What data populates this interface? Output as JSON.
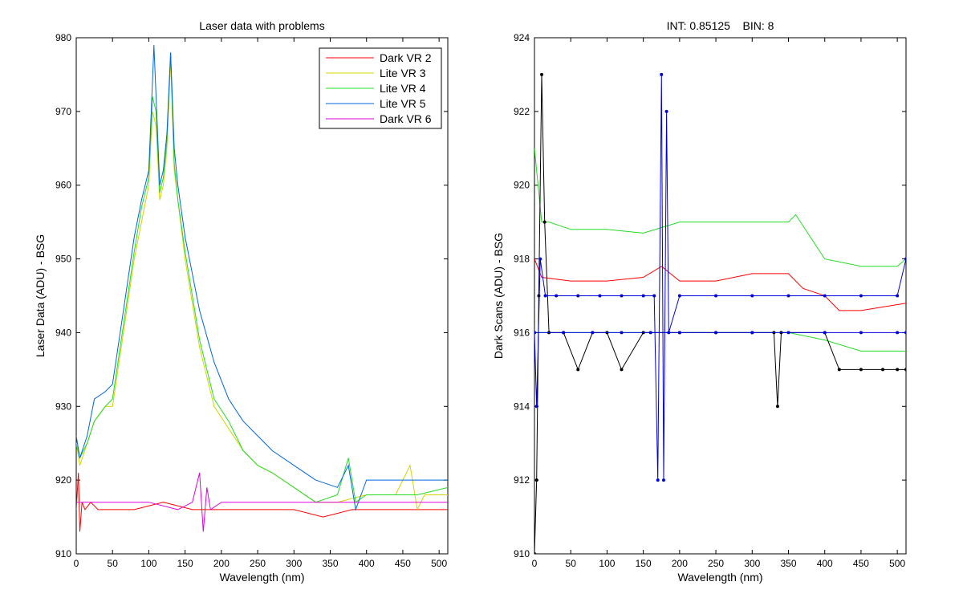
{
  "chart_data": [
    {
      "type": "line",
      "title": "Laser data with problems",
      "xlabel": "Wavelength (nm)",
      "ylabel": "Laser Data (ADU) - BSG",
      "xlim": [
        0,
        512
      ],
      "ylim": [
        910,
        980
      ],
      "xticks": [
        0,
        50,
        100,
        150,
        200,
        250,
        300,
        350,
        400,
        450,
        500
      ],
      "yticks": [
        910,
        920,
        930,
        940,
        950,
        960,
        970,
        980
      ],
      "grid": false,
      "legend_position": "top-right",
      "series": [
        {
          "name": "Dark VR 2",
          "color": "#ff0000",
          "points": [
            [
              0,
              916
            ],
            [
              3,
              921
            ],
            [
              5,
              913
            ],
            [
              8,
              917
            ],
            [
              12,
              916
            ],
            [
              20,
              917
            ],
            [
              30,
              916
            ],
            [
              50,
              916
            ],
            [
              80,
              916
            ],
            [
              120,
              917
            ],
            [
              160,
              916
            ],
            [
              200,
              916
            ],
            [
              260,
              916
            ],
            [
              300,
              916
            ],
            [
              340,
              915
            ],
            [
              380,
              916
            ],
            [
              420,
              916
            ],
            [
              460,
              916
            ],
            [
              512,
              916
            ]
          ]
        },
        {
          "name": "Lite VR 3",
          "color": "#d4d400",
          "points": [
            [
              0,
              925
            ],
            [
              5,
              922
            ],
            [
              15,
              925
            ],
            [
              25,
              928
            ],
            [
              40,
              930
            ],
            [
              50,
              930
            ],
            [
              65,
              940
            ],
            [
              80,
              950
            ],
            [
              90,
              955
            ],
            [
              100,
              960
            ],
            [
              105,
              970
            ],
            [
              110,
              968
            ],
            [
              115,
              958
            ],
            [
              120,
              960
            ],
            [
              125,
              965
            ],
            [
              130,
              977
            ],
            [
              135,
              962
            ],
            [
              140,
              958
            ],
            [
              150,
              950
            ],
            [
              170,
              938
            ],
            [
              190,
              930
            ],
            [
              210,
              927
            ],
            [
              230,
              924
            ],
            [
              250,
              922
            ],
            [
              270,
              921
            ],
            [
              300,
              919
            ],
            [
              330,
              917
            ],
            [
              360,
              917
            ],
            [
              400,
              918
            ],
            [
              440,
              918
            ],
            [
              460,
              922
            ],
            [
              470,
              916
            ],
            [
              480,
              918
            ],
            [
              512,
              918
            ]
          ]
        },
        {
          "name": "Lite VR 4",
          "color": "#22dd22",
          "points": [
            [
              0,
              925
            ],
            [
              5,
              923
            ],
            [
              15,
              925
            ],
            [
              25,
              928
            ],
            [
              40,
              930
            ],
            [
              50,
              931
            ],
            [
              65,
              941
            ],
            [
              80,
              951
            ],
            [
              90,
              957
            ],
            [
              100,
              961
            ],
            [
              105,
              972
            ],
            [
              110,
              970
            ],
            [
              115,
              959
            ],
            [
              120,
              961
            ],
            [
              125,
              966
            ],
            [
              130,
              978
            ],
            [
              135,
              963
            ],
            [
              140,
              958
            ],
            [
              150,
              951
            ],
            [
              170,
              939
            ],
            [
              190,
              931
            ],
            [
              210,
              928
            ],
            [
              230,
              924
            ],
            [
              250,
              922
            ],
            [
              270,
              921
            ],
            [
              300,
              919
            ],
            [
              330,
              917
            ],
            [
              360,
              918
            ],
            [
              375,
              923
            ],
            [
              385,
              917
            ],
            [
              400,
              918
            ],
            [
              440,
              918
            ],
            [
              470,
              918
            ],
            [
              512,
              919
            ]
          ]
        },
        {
          "name": "Lite VR 5",
          "color": "#0066dd",
          "points": [
            [
              0,
              926
            ],
            [
              5,
              923
            ],
            [
              15,
              926
            ],
            [
              25,
              931
            ],
            [
              40,
              932
            ],
            [
              50,
              933
            ],
            [
              65,
              943
            ],
            [
              80,
              953
            ],
            [
              90,
              958
            ],
            [
              100,
              962
            ],
            [
              105,
              974
            ],
            [
              107,
              979
            ],
            [
              110,
              972
            ],
            [
              115,
              960
            ],
            [
              120,
              962
            ],
            [
              125,
              967
            ],
            [
              130,
              978
            ],
            [
              135,
              965
            ],
            [
              140,
              960
            ],
            [
              150,
              953
            ],
            [
              170,
              943
            ],
            [
              190,
              936
            ],
            [
              210,
              931
            ],
            [
              230,
              928
            ],
            [
              250,
              926
            ],
            [
              270,
              924
            ],
            [
              300,
              922
            ],
            [
              330,
              920
            ],
            [
              360,
              919
            ],
            [
              375,
              922
            ],
            [
              385,
              916
            ],
            [
              400,
              920
            ],
            [
              440,
              920
            ],
            [
              480,
              920
            ],
            [
              512,
              920
            ]
          ]
        },
        {
          "name": "Dark VR 6",
          "color": "#dd00dd",
          "points": [
            [
              0,
              917
            ],
            [
              20,
              917
            ],
            [
              40,
              917
            ],
            [
              70,
              917
            ],
            [
              100,
              917
            ],
            [
              140,
              916
            ],
            [
              160,
              917
            ],
            [
              170,
              921
            ],
            [
              175,
              913
            ],
            [
              180,
              919
            ],
            [
              185,
              916
            ],
            [
              200,
              917
            ],
            [
              240,
              917
            ],
            [
              280,
              917
            ],
            [
              320,
              917
            ],
            [
              360,
              917
            ],
            [
              400,
              917
            ],
            [
              440,
              917
            ],
            [
              480,
              917
            ],
            [
              512,
              917
            ]
          ]
        }
      ]
    },
    {
      "type": "line",
      "title": "INT: 0.85125    BIN: 8",
      "xlabel": "Wavelength (nm)",
      "ylabel": "Dark Scans (ADU) - BSG",
      "xlim": [
        0,
        512
      ],
      "ylim": [
        910,
        924
      ],
      "xticks": [
        0,
        50,
        100,
        150,
        200,
        250,
        300,
        350,
        400,
        450,
        500
      ],
      "yticks": [
        910,
        912,
        914,
        916,
        918,
        920,
        922,
        924
      ],
      "grid": false,
      "series": [
        {
          "color": "#22dd22",
          "points": [
            [
              0,
              921
            ],
            [
              5,
              920
            ],
            [
              10,
              919
            ],
            [
              20,
              919
            ],
            [
              50,
              918.8
            ],
            [
              100,
              918.8
            ],
            [
              150,
              918.7
            ],
            [
              200,
              919
            ],
            [
              250,
              919
            ],
            [
              300,
              919
            ],
            [
              350,
              919
            ],
            [
              360,
              919.2
            ],
            [
              380,
              918.6
            ],
            [
              400,
              918
            ],
            [
              450,
              917.8
            ],
            [
              500,
              917.8
            ],
            [
              512,
              918
            ]
          ]
        },
        {
          "color": "#22dd22",
          "points": [
            [
              0,
              916
            ],
            [
              20,
              916
            ],
            [
              60,
              916
            ],
            [
              100,
              916
            ],
            [
              150,
              916
            ],
            [
              200,
              916
            ],
            [
              250,
              916
            ],
            [
              300,
              916
            ],
            [
              350,
              916
            ],
            [
              400,
              915.8
            ],
            [
              450,
              915.5
            ],
            [
              500,
              915.5
            ],
            [
              512,
              915.5
            ]
          ]
        },
        {
          "color": "#ff0000",
          "points": [
            [
              0,
              918
            ],
            [
              10,
              917.5
            ],
            [
              50,
              917.4
            ],
            [
              100,
              917.4
            ],
            [
              150,
              917.5
            ],
            [
              175,
              917.8
            ],
            [
              200,
              917.4
            ],
            [
              250,
              917.4
            ],
            [
              300,
              917.6
            ],
            [
              350,
              917.6
            ],
            [
              370,
              917.2
            ],
            [
              400,
              917
            ],
            [
              420,
              916.6
            ],
            [
              450,
              916.6
            ],
            [
              512,
              916.8
            ]
          ]
        },
        {
          "color": "#000000",
          "points": [
            [
              0,
              910
            ],
            [
              3,
              912
            ],
            [
              6,
              917
            ],
            [
              10,
              923
            ],
            [
              14,
              919
            ],
            [
              20,
              916
            ],
            [
              40,
              916
            ],
            [
              60,
              915
            ],
            [
              80,
              916
            ],
            [
              100,
              916
            ],
            [
              120,
              915
            ],
            [
              150,
              916
            ],
            [
              200,
              916
            ],
            [
              250,
              916
            ],
            [
              300,
              916
            ],
            [
              330,
              916
            ],
            [
              335,
              914
            ],
            [
              340,
              916
            ],
            [
              400,
              916
            ],
            [
              420,
              915
            ],
            [
              450,
              915
            ],
            [
              480,
              915
            ],
            [
              500,
              915
            ],
            [
              512,
              915
            ]
          ]
        },
        {
          "color": "#0000dd",
          "points": [
            [
              0,
              916
            ],
            [
              3,
              914
            ],
            [
              8,
              918
            ],
            [
              15,
              917
            ],
            [
              30,
              917
            ],
            [
              60,
              917
            ],
            [
              90,
              917
            ],
            [
              120,
              917
            ],
            [
              150,
              917
            ],
            [
              165,
              917
            ],
            [
              170,
              912
            ],
            [
              175,
              923
            ],
            [
              178,
              912
            ],
            [
              182,
              922
            ],
            [
              185,
              916
            ],
            [
              200,
              917
            ],
            [
              250,
              917
            ],
            [
              300,
              917
            ],
            [
              350,
              917
            ],
            [
              400,
              917
            ],
            [
              450,
              917
            ],
            [
              500,
              917
            ],
            [
              512,
              918
            ]
          ]
        },
        {
          "color": "#0000dd",
          "points": [
            [
              0,
              916
            ],
            [
              40,
              916
            ],
            [
              80,
              916
            ],
            [
              120,
              916
            ],
            [
              160,
              916
            ],
            [
              200,
              916
            ],
            [
              250,
              916
            ],
            [
              300,
              916
            ],
            [
              350,
              916
            ],
            [
              400,
              916
            ],
            [
              450,
              916
            ],
            [
              500,
              916
            ],
            [
              512,
              916
            ]
          ]
        }
      ]
    }
  ]
}
